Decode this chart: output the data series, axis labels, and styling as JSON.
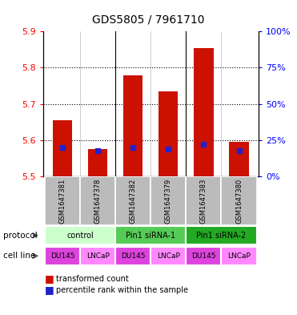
{
  "title": "GDS5805 / 7961710",
  "samples": [
    "GSM1647381",
    "GSM1647378",
    "GSM1647382",
    "GSM1647379",
    "GSM1647383",
    "GSM1647380"
  ],
  "transformed_counts": [
    5.655,
    5.575,
    5.78,
    5.735,
    5.855,
    5.595
  ],
  "percentile_ranks": [
    20,
    18,
    20,
    19,
    22,
    18
  ],
  "ylim_left": [
    5.5,
    5.9
  ],
  "ylim_right": [
    0,
    100
  ],
  "yticks_left": [
    5.5,
    5.6,
    5.7,
    5.8,
    5.9
  ],
  "yticks_right": [
    0,
    25,
    50,
    75,
    100
  ],
  "protocol_groups": [
    {
      "label": "control",
      "span": [
        0,
        2
      ],
      "color": "#ccffcc"
    },
    {
      "label": "Pin1 siRNA-1",
      "span": [
        2,
        4
      ],
      "color": "#55cc55"
    },
    {
      "label": "Pin1 siRNA-2",
      "span": [
        4,
        6
      ],
      "color": "#22aa22"
    }
  ],
  "cell_lines": [
    "DU145",
    "LNCaP",
    "DU145",
    "LNCaP",
    "DU145",
    "LNCaP"
  ],
  "cell_line_colors": [
    "#dd44dd",
    "#ff88ff",
    "#dd44dd",
    "#ff88ff",
    "#dd44dd",
    "#ff88ff"
  ],
  "bar_color": "#cc1100",
  "blue_color": "#2222cc",
  "bar_bottom": 5.5,
  "sample_bg": "#bbbbbb",
  "legend_items": [
    {
      "color": "#cc1100",
      "label": "transformed count"
    },
    {
      "color": "#2222cc",
      "label": "percentile rank within the sample"
    }
  ]
}
